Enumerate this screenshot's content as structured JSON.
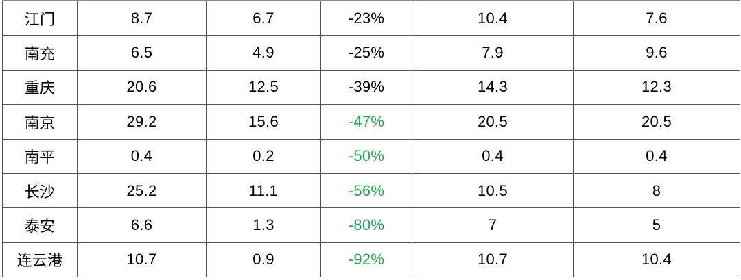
{
  "colors": {
    "text": "#000000",
    "pct_change_green": "#21A750",
    "grid_line": "#555555",
    "background": "#ffffff"
  },
  "chart_data": {
    "type": "table",
    "title": "",
    "columns": [
      "",
      "",
      "",
      "",
      "",
      ""
    ],
    "layout_hints": {
      "grid": "on",
      "header_row_visible": false,
      "cropped_top": true,
      "all_cells_centered": true
    },
    "rows": [
      {
        "city": "江门",
        "values": [
          "8.7",
          "6.7",
          "-23%",
          "10.4",
          "7.6"
        ],
        "pct_green": false
      },
      {
        "city": "南充",
        "values": [
          "6.5",
          "4.9",
          "-25%",
          "7.9",
          "9.6"
        ],
        "pct_green": false
      },
      {
        "city": "重庆",
        "values": [
          "20.6",
          "12.5",
          "-39%",
          "14.3",
          "12.3"
        ],
        "pct_green": false
      },
      {
        "city": "南京",
        "values": [
          "29.2",
          "15.6",
          "-47%",
          "20.5",
          "20.5"
        ],
        "pct_green": true
      },
      {
        "city": "南平",
        "values": [
          "0.4",
          "0.2",
          "-50%",
          "0.4",
          "0.4"
        ],
        "pct_green": true
      },
      {
        "city": "长沙",
        "values": [
          "25.2",
          "11.1",
          "-56%",
          "10.5",
          "8"
        ],
        "pct_green": true
      },
      {
        "city": "泰安",
        "values": [
          "6.6",
          "1.3",
          "-80%",
          "7",
          "5"
        ],
        "pct_green": true
      },
      {
        "city": "连云港",
        "values": [
          "10.7",
          "0.9",
          "-92%",
          "10.7",
          "10.4"
        ],
        "pct_green": true
      }
    ]
  }
}
